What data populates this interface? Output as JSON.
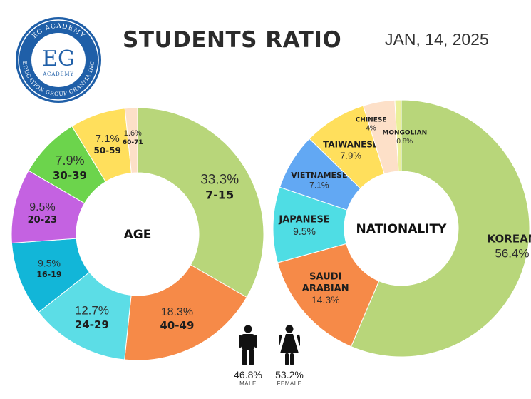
{
  "header": {
    "title": "STUDENTS RATIO",
    "date": "JAN, 14, 2025"
  },
  "logo": {
    "initials": "EG",
    "top_text": "EG ACADEMY",
    "sub_text": "ACADEMY",
    "ring_text": "EDUCATION GROUP GRANMA INC"
  },
  "chart_data": [
    {
      "type": "pie",
      "variant": "donut",
      "title": "AGE",
      "slices": [
        {
          "label": "7-15",
          "value": 33.3,
          "display": "33.3%",
          "color": "#b8d67a"
        },
        {
          "label": "40-49",
          "value": 18.3,
          "display": "18.3%",
          "color": "#f68a48"
        },
        {
          "label": "24-29",
          "value": 12.7,
          "display": "12.7%",
          "color": "#5cdde6"
        },
        {
          "label": "16-19",
          "value": 9.5,
          "display": "9.5%",
          "color": "#12b6d8"
        },
        {
          "label": "20-23",
          "value": 9.5,
          "display": "9.5%",
          "color": "#c462e1"
        },
        {
          "label": "30-39",
          "value": 7.9,
          "display": "7.9%",
          "color": "#6cd44c"
        },
        {
          "label": "50-59",
          "value": 7.1,
          "display": "7.1%",
          "color": "#ffdf5c"
        },
        {
          "label": "60-71",
          "value": 1.6,
          "display": "1.6%",
          "color": "#fde0c8"
        }
      ]
    },
    {
      "type": "pie",
      "variant": "donut",
      "title": "NATIONALITY",
      "slices": [
        {
          "label": "KOREAN",
          "value": 56.4,
          "display": "56.4%",
          "color": "#b8d67a"
        },
        {
          "label": "SAUDI ARABIAN",
          "value": 14.3,
          "display": "14.3%",
          "color": "#f68a48"
        },
        {
          "label": "JAPANESE",
          "value": 9.5,
          "display": "9.5%",
          "color": "#4fdde4"
        },
        {
          "label": "VIETNAMESE",
          "value": 7.1,
          "display": "7.1%",
          "color": "#62a8f3"
        },
        {
          "label": "TAIWANESE",
          "value": 7.9,
          "display": "7.9%",
          "color": "#ffdf5c"
        },
        {
          "label": "CHINESE",
          "value": 4,
          "display": "4%",
          "color": "#fde0c8"
        },
        {
          "label": "MONGOLIAN",
          "value": 0.8,
          "display": "0.8%",
          "color": "#eaf09a"
        }
      ]
    }
  ],
  "gender": {
    "male": {
      "value": 46.8,
      "display": "46.8%",
      "label": "MALE"
    },
    "female": {
      "value": 53.2,
      "display": "53.2%",
      "label": "FEMALE"
    }
  }
}
